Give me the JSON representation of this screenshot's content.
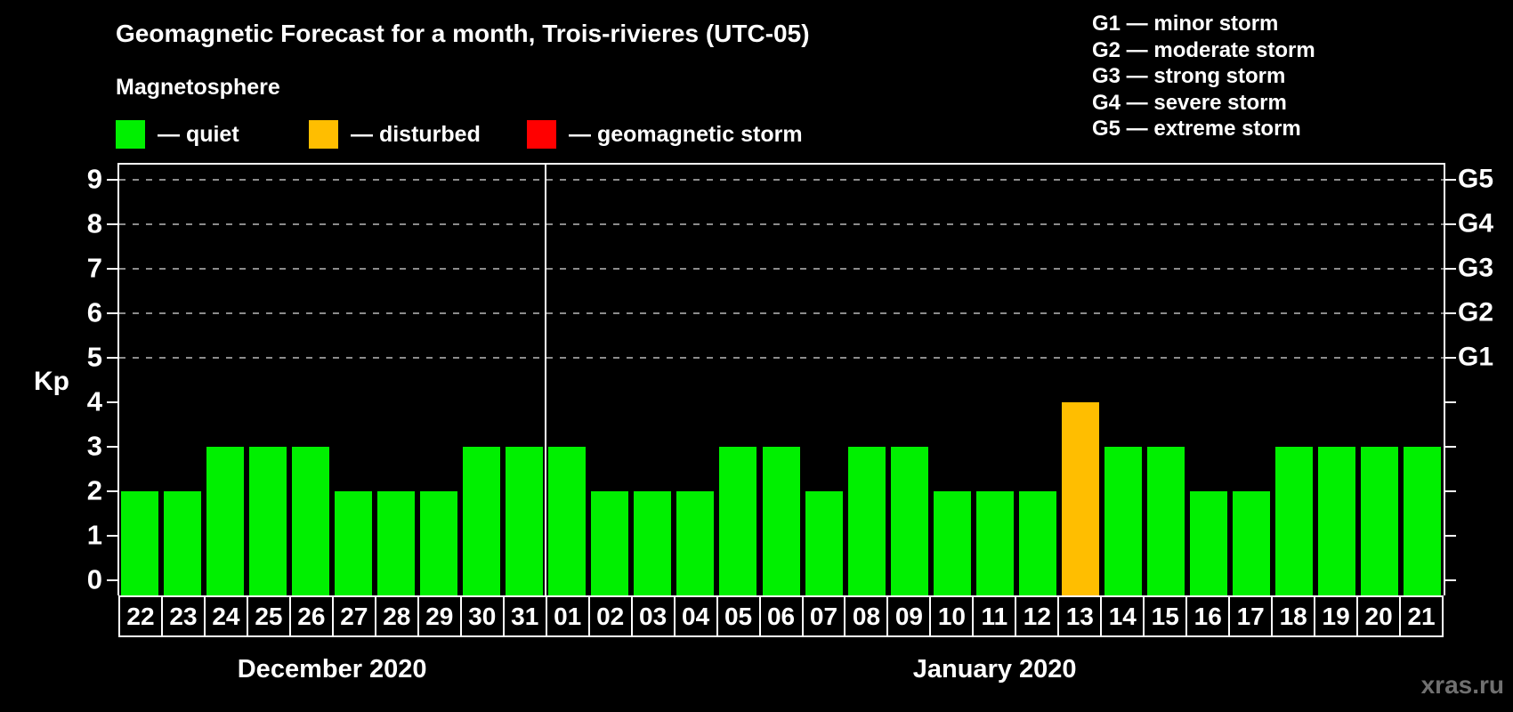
{
  "title": "Geomagnetic Forecast for a month, Trois-rivieres (UTC-05)",
  "legend": {
    "heading": "Magnetosphere",
    "items": [
      {
        "name": "quiet",
        "label": "— quiet",
        "color": "#00f000",
        "x": 130
      },
      {
        "name": "disturbed",
        "label": "— disturbed",
        "color": "#ffbe00",
        "x": 347
      },
      {
        "name": "storm",
        "label": "— geomagnetic storm",
        "color": "#ff0000",
        "x": 592
      }
    ]
  },
  "g_scale_legend": [
    "G1 — minor storm",
    "G2 — moderate storm",
    "G3 — strong storm",
    "G4 — severe storm",
    "G5 — extreme storm"
  ],
  "watermark": "xras.ru",
  "chart_data": {
    "type": "bar",
    "title": "Geomagnetic Forecast for a month, Trois-rivieres (UTC-05)",
    "ylabel": "Kp",
    "ylim": [
      0,
      9
    ],
    "yticks": [
      0,
      1,
      2,
      3,
      4,
      5,
      6,
      7,
      8,
      9
    ],
    "grid_kp_levels": [
      5,
      6,
      7,
      8,
      9
    ],
    "right_axis_labels": [
      {
        "kp": 5,
        "label": "G1"
      },
      {
        "kp": 6,
        "label": "G2"
      },
      {
        "kp": 7,
        "label": "G3"
      },
      {
        "kp": 8,
        "label": "G4"
      },
      {
        "kp": 9,
        "label": "G5"
      }
    ],
    "status_colors": {
      "quiet": "#00f000",
      "disturbed": "#ffbe00",
      "storm": "#ff0000"
    },
    "months": [
      {
        "label": "December 2020",
        "days": 10
      },
      {
        "label": "January 2020",
        "days": 21
      }
    ],
    "bars": [
      {
        "day": "22",
        "kp": 2,
        "status": "quiet"
      },
      {
        "day": "23",
        "kp": 2,
        "status": "quiet"
      },
      {
        "day": "24",
        "kp": 3,
        "status": "quiet"
      },
      {
        "day": "25",
        "kp": 3,
        "status": "quiet"
      },
      {
        "day": "26",
        "kp": 3,
        "status": "quiet"
      },
      {
        "day": "27",
        "kp": 2,
        "status": "quiet"
      },
      {
        "day": "28",
        "kp": 2,
        "status": "quiet"
      },
      {
        "day": "29",
        "kp": 2,
        "status": "quiet"
      },
      {
        "day": "30",
        "kp": 3,
        "status": "quiet"
      },
      {
        "day": "31",
        "kp": 3,
        "status": "quiet"
      },
      {
        "day": "01",
        "kp": 3,
        "status": "quiet"
      },
      {
        "day": "02",
        "kp": 2,
        "status": "quiet"
      },
      {
        "day": "03",
        "kp": 2,
        "status": "quiet"
      },
      {
        "day": "04",
        "kp": 2,
        "status": "quiet"
      },
      {
        "day": "05",
        "kp": 3,
        "status": "quiet"
      },
      {
        "day": "06",
        "kp": 3,
        "status": "quiet"
      },
      {
        "day": "07",
        "kp": 2,
        "status": "quiet"
      },
      {
        "day": "08",
        "kp": 3,
        "status": "quiet"
      },
      {
        "day": "09",
        "kp": 3,
        "status": "quiet"
      },
      {
        "day": "10",
        "kp": 2,
        "status": "quiet"
      },
      {
        "day": "11",
        "kp": 2,
        "status": "quiet"
      },
      {
        "day": "12",
        "kp": 2,
        "status": "quiet"
      },
      {
        "day": "13",
        "kp": 4,
        "status": "disturbed"
      },
      {
        "day": "14",
        "kp": 3,
        "status": "quiet"
      },
      {
        "day": "15",
        "kp": 3,
        "status": "quiet"
      },
      {
        "day": "16",
        "kp": 2,
        "status": "quiet"
      },
      {
        "day": "17",
        "kp": 2,
        "status": "quiet"
      },
      {
        "day": "18",
        "kp": 3,
        "status": "quiet"
      },
      {
        "day": "19",
        "kp": 3,
        "status": "quiet"
      },
      {
        "day": "20",
        "kp": 3,
        "status": "quiet"
      },
      {
        "day": "21",
        "kp": 3,
        "status": "quiet"
      }
    ]
  }
}
